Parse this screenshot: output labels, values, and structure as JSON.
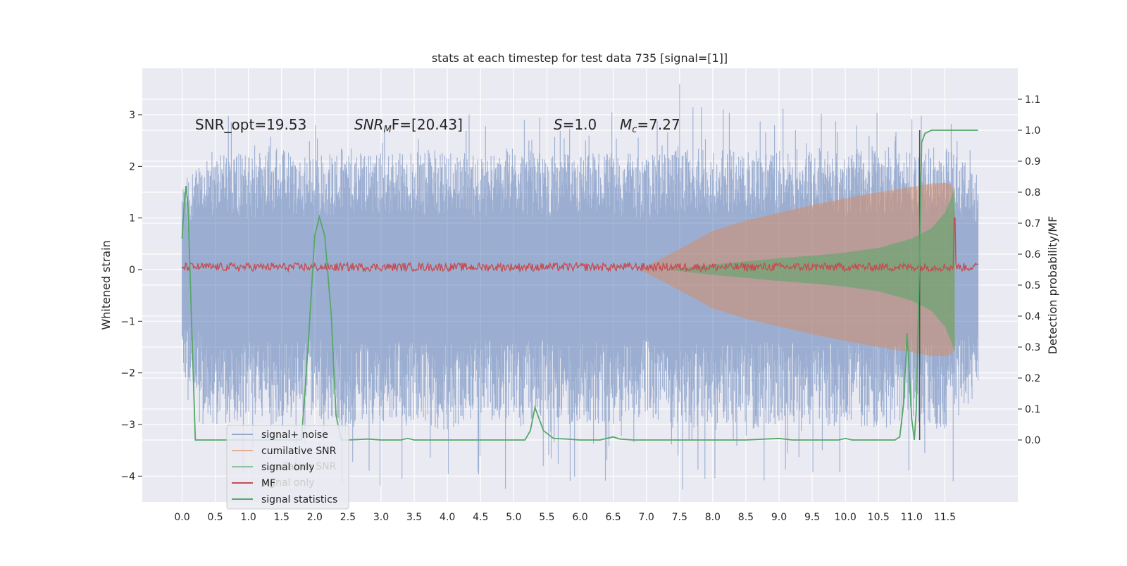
{
  "chart_data": {
    "type": "line",
    "title": "stats at each timestep for test data 735 [signal=[1]]",
    "ylabel_left": "Whitened strain",
    "ylabel_right": "Detection probability/MF",
    "xlim": [
      -0.6,
      12.6
    ],
    "ylim_left": [
      -4.5,
      3.9
    ],
    "ylim_right": [
      -0.2,
      1.2
    ],
    "x_ticks": [
      0.0,
      0.5,
      1.0,
      1.5,
      2.0,
      2.5,
      3.0,
      3.5,
      4.0,
      4.5,
      5.0,
      5.5,
      6.0,
      6.5,
      7.0,
      7.5,
      8.0,
      8.5,
      9.0,
      9.5,
      10.0,
      10.5,
      11.0,
      11.5
    ],
    "x_tick_labels": [
      "0.0",
      "0.5",
      "1.0",
      "1.5",
      "2.0",
      "2.5",
      "3.0",
      "3.5",
      "4.0",
      "4.5",
      "5.0",
      "5.5",
      "6.0",
      "6.5",
      "7.0",
      "7.5",
      "8.0",
      "8.5",
      "9.0",
      "9.5",
      "10.0",
      "10.5",
      "11.0",
      "11.5"
    ],
    "y_left_ticks": [
      3,
      2,
      1,
      0,
      -1,
      -2,
      -3,
      -4
    ],
    "y_left_tick_labels": [
      "3",
      "2",
      "1",
      "0",
      "−1",
      "−2",
      "−3",
      "−4"
    ],
    "y_right_ticks": [
      1.1,
      1.0,
      0.9,
      0.8,
      0.7,
      0.6,
      0.5,
      0.4,
      0.3,
      0.2,
      0.1,
      0.0
    ],
    "y_right_tick_labels": [
      "1.1",
      "1.0",
      "0.9",
      "0.8",
      "0.7",
      "0.6",
      "0.5",
      "0.4",
      "0.3",
      "0.2",
      "0.1",
      "0.0"
    ],
    "grid": true,
    "legend_location": "lower-left",
    "annotations": {
      "snr_opt": "SNR_opt=19.53",
      "snr_mf_main": "SNR",
      "snr_mf_sub": "M",
      "snr_mf_rest": "F=[20.43]",
      "s_italic": "S",
      "s_value": "=1.0",
      "mc_italic": "M",
      "mc_sub": "c",
      "mc_value": "=7.27"
    },
    "legend_entries": [
      {
        "label": "signal+ noise",
        "color": "#4C72B0"
      },
      {
        "label": "cumilative SNR",
        "color": "#DD8452"
      },
      {
        "label": "signal only",
        "color": "#55A868"
      },
      {
        "label": "MF",
        "color": "#C44E52"
      },
      {
        "label": "signal statistics",
        "color": "#55A868"
      }
    ],
    "legend_ghost_entries": [
      {
        "label": "cumilative SNR"
      },
      {
        "label": "signal only"
      }
    ],
    "series": [
      {
        "name": "signal+ noise",
        "axis": "left",
        "color": "#4C72B0",
        "t_range": [
          0.0,
          12.0
        ],
        "envelope_amplitude": [
          [
            0.0,
            1.6
          ],
          [
            0.5,
            2.4
          ],
          [
            1.0,
            2.2
          ],
          [
            1.5,
            2.4
          ],
          [
            2.0,
            2.2
          ],
          [
            2.5,
            2.4
          ],
          [
            3.0,
            2.3
          ],
          [
            3.5,
            2.3
          ],
          [
            4.0,
            2.4
          ],
          [
            4.5,
            2.2
          ],
          [
            5.0,
            2.4
          ],
          [
            5.5,
            2.2
          ],
          [
            6.0,
            2.3
          ],
          [
            6.5,
            2.3
          ],
          [
            7.0,
            2.2
          ],
          [
            7.5,
            2.4
          ],
          [
            8.0,
            2.3
          ],
          [
            8.5,
            2.4
          ],
          [
            9.0,
            2.3
          ],
          [
            9.5,
            2.4
          ],
          [
            10.0,
            2.3
          ],
          [
            10.5,
            2.4
          ],
          [
            11.0,
            2.3
          ],
          [
            11.5,
            2.4
          ],
          [
            12.0,
            1.9
          ]
        ],
        "max": 3.6,
        "min": -4.1
      },
      {
        "name": "cumilative SNR",
        "axis": "left",
        "color": "#DD8452",
        "envelope": [
          [
            6.9,
            0.0
          ],
          [
            7.5,
            0.4
          ],
          [
            8.0,
            0.75
          ],
          [
            8.5,
            0.95
          ],
          [
            9.0,
            1.1
          ],
          [
            9.5,
            1.25
          ],
          [
            10.0,
            1.38
          ],
          [
            10.5,
            1.5
          ],
          [
            11.0,
            1.6
          ],
          [
            11.3,
            1.67
          ],
          [
            11.5,
            1.68
          ],
          [
            11.6,
            1.65
          ],
          [
            11.65,
            1.5
          ]
        ]
      },
      {
        "name": "signal only",
        "axis": "left",
        "color": "#55A868",
        "envelope": [
          [
            7.3,
            0.0
          ],
          [
            8.0,
            0.1
          ],
          [
            8.5,
            0.16
          ],
          [
            9.0,
            0.22
          ],
          [
            9.5,
            0.27
          ],
          [
            10.0,
            0.33
          ],
          [
            10.5,
            0.42
          ],
          [
            11.0,
            0.6
          ],
          [
            11.3,
            0.8
          ],
          [
            11.5,
            1.1
          ],
          [
            11.6,
            1.4
          ],
          [
            11.65,
            1.6
          ]
        ]
      },
      {
        "name": "MF",
        "axis": "left",
        "color": "#C44E52",
        "baseline": 0.05,
        "noise_amplitude": 0.08,
        "spike": {
          "x": 11.65,
          "y": 1.0
        }
      },
      {
        "name": "signal statistics",
        "axis": "right",
        "color": "#55A868",
        "points": [
          [
            0.0,
            0.65
          ],
          [
            0.02,
            0.72
          ],
          [
            0.04,
            0.78
          ],
          [
            0.06,
            0.82
          ],
          [
            0.09,
            0.75
          ],
          [
            0.14,
            0.4
          ],
          [
            0.2,
            0.0
          ],
          [
            0.3,
            0.0
          ],
          [
            0.5,
            0.0
          ],
          [
            1.0,
            0.0
          ],
          [
            1.5,
            0.0
          ],
          [
            1.8,
            0.0
          ],
          [
            1.9,
            0.3
          ],
          [
            2.0,
            0.66
          ],
          [
            2.07,
            0.72
          ],
          [
            2.15,
            0.66
          ],
          [
            2.25,
            0.4
          ],
          [
            2.32,
            0.08
          ],
          [
            2.4,
            0.0
          ],
          [
            2.5,
            0.0
          ],
          [
            2.8,
            0.003
          ],
          [
            3.0,
            0.0
          ],
          [
            3.3,
            0.0
          ],
          [
            3.4,
            0.005
          ],
          [
            3.5,
            0.0
          ],
          [
            4.0,
            0.0
          ],
          [
            4.5,
            0.0
          ],
          [
            5.0,
            0.0
          ],
          [
            5.17,
            0.0
          ],
          [
            5.25,
            0.03
          ],
          [
            5.32,
            0.105
          ],
          [
            5.38,
            0.07
          ],
          [
            5.45,
            0.03
          ],
          [
            5.6,
            0.005
          ],
          [
            5.8,
            0.003
          ],
          [
            6.0,
            0.0
          ],
          [
            6.3,
            0.0
          ],
          [
            6.5,
            0.01
          ],
          [
            6.6,
            0.003
          ],
          [
            6.8,
            0.0
          ],
          [
            7.0,
            0.0
          ],
          [
            7.5,
            0.0
          ],
          [
            8.0,
            0.0
          ],
          [
            8.5,
            0.0
          ],
          [
            9.0,
            0.005
          ],
          [
            9.2,
            0.0
          ],
          [
            9.5,
            0.0
          ],
          [
            9.9,
            0.0
          ],
          [
            10.0,
            0.005
          ],
          [
            10.1,
            0.0
          ],
          [
            10.5,
            0.0
          ],
          [
            10.75,
            0.0
          ],
          [
            10.82,
            0.01
          ],
          [
            10.88,
            0.12
          ],
          [
            10.93,
            0.345
          ],
          [
            10.97,
            0.2
          ],
          [
            11.0,
            0.07
          ],
          [
            11.04,
            0.0
          ],
          [
            11.07,
            0.1
          ],
          [
            11.12,
            0.6
          ],
          [
            11.15,
            0.96
          ],
          [
            11.2,
            0.99
          ],
          [
            11.3,
            1.0
          ],
          [
            12.0,
            1.0
          ]
        ]
      }
    ],
    "vertical_marker": {
      "x": 11.12,
      "y_right_range": [
        0.0,
        1.0
      ],
      "color": "#4a4a4a"
    }
  }
}
